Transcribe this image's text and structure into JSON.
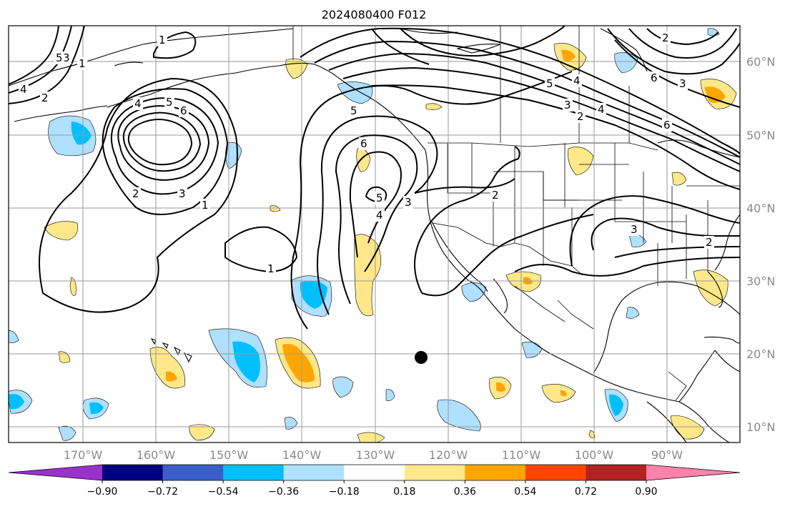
{
  "title": "2024080400 F012",
  "lon_labels": [
    "170°W",
    "160°W",
    "150°W",
    "140°W",
    "130°W",
    "120°W",
    "110°W",
    "100°W",
    "90°W"
  ],
  "lat_labels": [
    "60°N",
    "50°N",
    "40°N",
    "30°N",
    "20°N",
    "10°N"
  ],
  "colorbar": {
    "colors": [
      "#9932cc",
      "#000080",
      "#3a5fcd",
      "#00bfff",
      "#afe0ff",
      "#ffffff",
      "#ffe88a",
      "#ffa500",
      "#ff4500",
      "#b22222",
      "#ff82ab"
    ],
    "ticks": [
      "−0.90",
      "−0.72",
      "−0.54",
      "−0.36",
      "−0.18",
      "0.18",
      "0.36",
      "0.54",
      "0.72",
      "0.90"
    ]
  },
  "contour_labels": [
    "1",
    "2",
    "3",
    "4",
    "5",
    "6",
    "1",
    "2",
    "3",
    "4",
    "5",
    "1",
    "2",
    "3",
    "4",
    "5",
    "6",
    "2",
    "3",
    "4",
    "5",
    "6",
    "2",
    "3",
    "1",
    "2",
    "3",
    "4",
    "5",
    "6"
  ],
  "marker": "storm-center-dot"
}
